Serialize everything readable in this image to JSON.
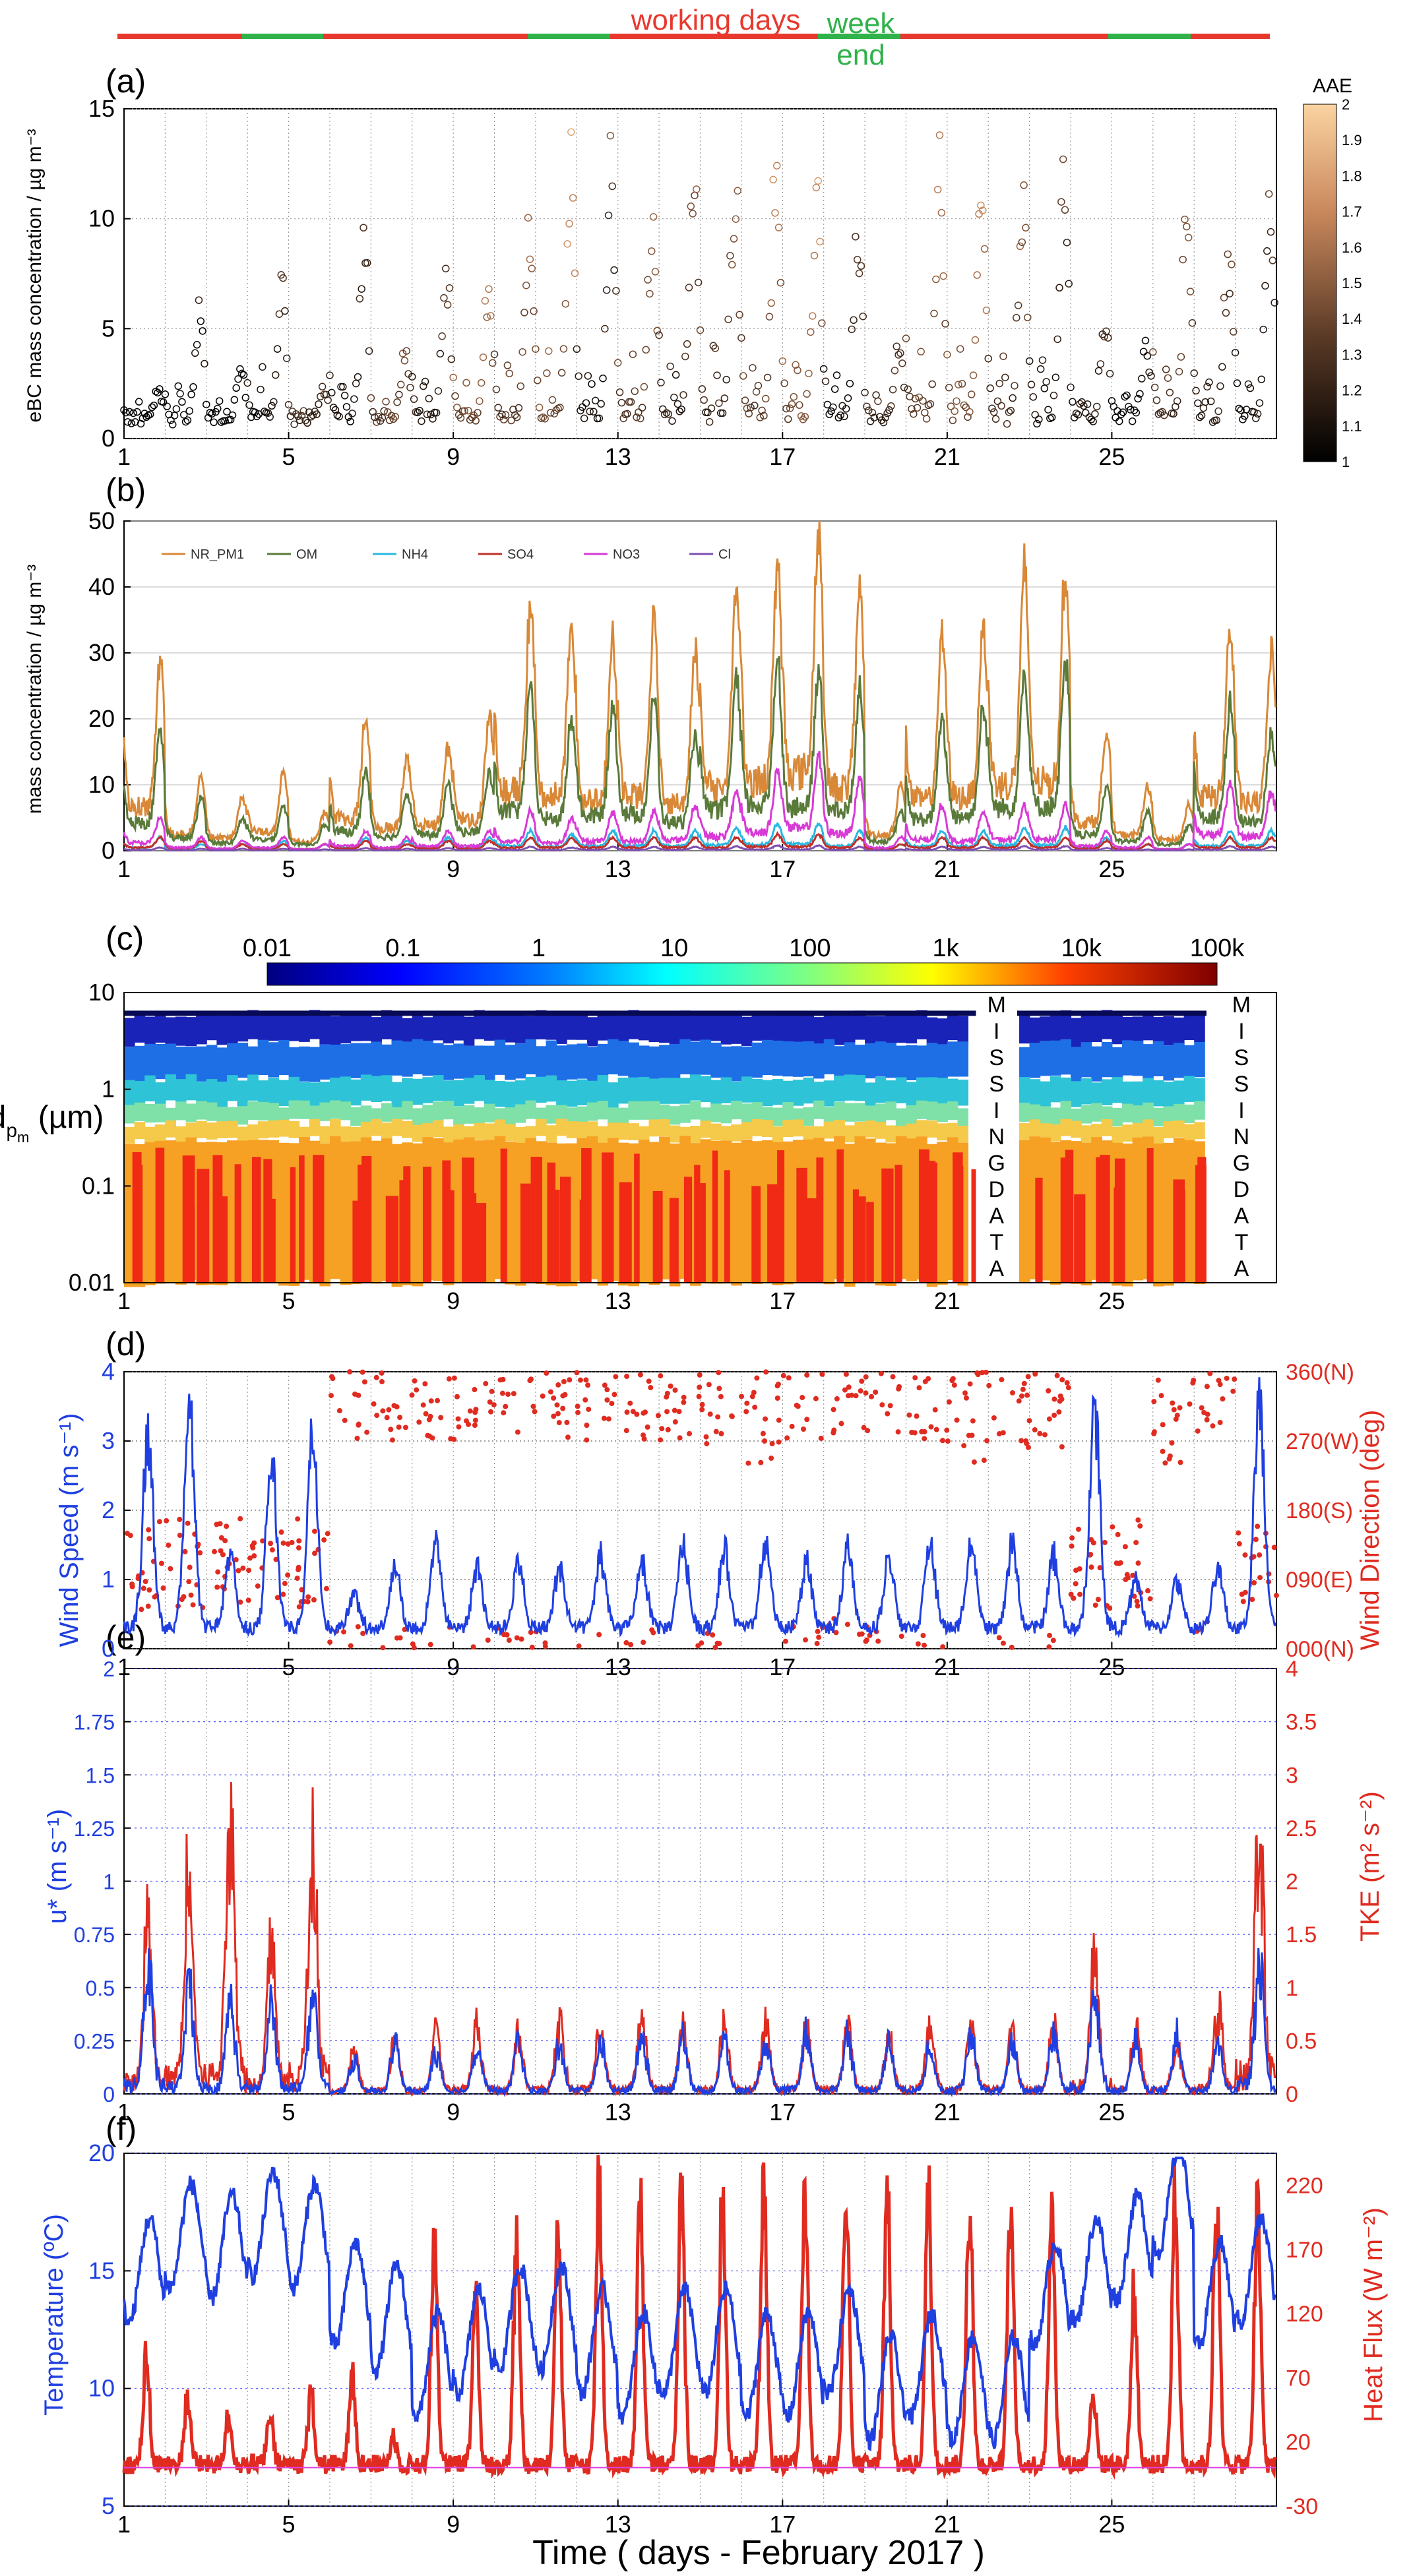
{
  "figure": {
    "xlabel": "Time ( days -  February 2017 )",
    "x_ticks": [
      "1",
      "5",
      "9",
      "13",
      "17",
      "21",
      "25"
    ],
    "banner": {
      "working_label": "working days",
      "weekend_label_1": "week",
      "weekend_label_2": "end",
      "working_color": "#e8382e",
      "weekend_color": "#2fb24a"
    }
  },
  "chart_data": [
    {
      "panel": "(a)",
      "type": "scatter",
      "ylabel": "eBC mass concentration / µg m⁻³",
      "ylim": [
        0,
        15
      ],
      "yticks": [
        "0",
        "5",
        "10",
        "15"
      ],
      "xlim": [
        1,
        29
      ],
      "grid": true,
      "colorbar": {
        "title": "AAE",
        "range": [
          1,
          2
        ],
        "ticks": [
          "1",
          "1.1",
          "1.2",
          "1.3",
          "1.4",
          "1.5",
          "1.6",
          "1.7",
          "1.8",
          "1.9",
          "2"
        ]
      },
      "daily_peak_ebc": [
        2.5,
        6.5,
        3.5,
        8.5,
        2.5,
        10.0,
        4.5,
        9.5,
        7.5,
        10.5,
        14.5,
        14.0,
        11.5,
        14.5,
        14.5,
        14.0,
        13.0,
        12.0,
        5.0,
        14.0,
        13.0,
        14.0,
        14.5,
        6.5,
        5.0,
        13.0,
        10.0,
        12.0
      ],
      "daily_peak_aae": [
        1.1,
        1.2,
        1.15,
        1.3,
        1.5,
        1.3,
        1.6,
        1.4,
        1.7,
        1.55,
        1.7,
        1.3,
        1.6,
        1.4,
        1.45,
        1.6,
        1.7,
        1.3,
        1.5,
        1.6,
        1.7,
        1.5,
        1.3,
        1.4,
        1.2,
        1.5,
        1.4,
        1.3
      ]
    },
    {
      "panel": "(b)",
      "type": "line",
      "ylabel": "mass concentration / µg m⁻³",
      "ylim": [
        0,
        50
      ],
      "yticks": [
        "0",
        "10",
        "20",
        "30",
        "40",
        "50"
      ],
      "xlim": [
        1,
        29
      ],
      "legend_position": "top-left",
      "series": [
        {
          "name": "NR_PM1",
          "color": "#d98837",
          "daily_peak": [
            28,
            11,
            8,
            12,
            6,
            20,
            14,
            16,
            20,
            38,
            35,
            32,
            35,
            30,
            40,
            44,
            50,
            40,
            10,
            32,
            34,
            42,
            43,
            18,
            10,
            7,
            34,
            30
          ]
        },
        {
          "name": "OM",
          "color": "#5a7a3a",
          "daily_peak": [
            18,
            8,
            5,
            7,
            4,
            12,
            9,
            10,
            12,
            25,
            20,
            22,
            23,
            18,
            26,
            29,
            27,
            25,
            6,
            20,
            22,
            27,
            28,
            10,
            6,
            4,
            22,
            18
          ]
        },
        {
          "name": "NH4",
          "color": "#29b7e0",
          "daily_peak": [
            2,
            1,
            1,
            1.5,
            1,
            2,
            1.5,
            2,
            2,
            3,
            2.5,
            3,
            3,
            3,
            3.5,
            4,
            4,
            3,
            1,
            3,
            3,
            3.5,
            3.5,
            2,
            1,
            1,
            3,
            3
          ]
        },
        {
          "name": "SO4",
          "color": "#c0302a",
          "daily_peak": [
            2,
            1.5,
            1,
            1,
            1,
            1.5,
            1,
            1.5,
            1.5,
            2,
            2,
            2,
            2,
            2,
            2,
            2.5,
            2.5,
            2,
            1,
            2,
            2,
            2,
            2,
            1.5,
            1,
            1,
            2,
            2
          ]
        },
        {
          "name": "NO3",
          "color": "#d83ad6",
          "daily_peak": [
            5,
            2,
            1.5,
            2,
            1,
            3,
            2,
            3,
            3,
            6,
            5,
            6,
            6,
            7,
            9,
            12,
            14,
            11,
            2,
            7,
            6,
            7,
            7,
            3,
            2,
            1,
            10,
            9
          ]
        },
        {
          "name": "Cl",
          "color": "#7d4fb0",
          "daily_peak": [
            0.5,
            0.3,
            0.3,
            0.3,
            0.2,
            0.4,
            0.3,
            0.4,
            0.4,
            0.6,
            0.5,
            0.6,
            0.6,
            0.6,
            0.7,
            0.8,
            0.8,
            0.6,
            0.2,
            0.6,
            0.6,
            0.7,
            0.7,
            0.4,
            0.2,
            0.2,
            0.7,
            0.6
          ]
        }
      ]
    },
    {
      "panel": "(c)",
      "type": "heatmap",
      "ylabel": "dpm (µm)",
      "ylim": [
        0.01,
        10
      ],
      "yscale": "log",
      "yticks": [
        "0.01",
        "0.1",
        "1",
        "10"
      ],
      "colorbar": {
        "ticks": [
          "0.01",
          "0.1",
          "1",
          "10",
          "100",
          "1k",
          "10k",
          "100k"
        ],
        "position": "top"
      },
      "missing_data": [
        [
          21.7,
          22.7
        ],
        [
          27.3,
          29
        ]
      ],
      "missing_label": [
        "M",
        "I",
        "S",
        "S",
        "I",
        "N",
        "G",
        "DATA"
      ],
      "missing_label_letters_1": [
        "M",
        "I",
        "S",
        "S",
        "I",
        "N",
        "G",
        "D",
        "A",
        "T",
        "A"
      ]
    },
    {
      "panel": "(d)",
      "type": "line+scatter",
      "ylabel_left": "Wind Speed (m s⁻¹)",
      "ylabel_right": "Wind Direction (deg)",
      "ylim_left": [
        0,
        4
      ],
      "yticks_left": [
        "0",
        "1",
        "2",
        "3",
        "4"
      ],
      "ylim_right": [
        0,
        360
      ],
      "yticks_right": [
        "000(N)",
        "090(E)",
        "180(S)",
        "270(W)",
        "360(N)"
      ],
      "series": [
        {
          "name": "Wind Speed",
          "color": "#1f3fe0",
          "axis": "left",
          "daily_peak": [
            3.5,
            4.0,
            1.5,
            3.0,
            3.5,
            0.8,
            1.3,
            1.6,
            1.2,
            1.3,
            1.2,
            1.4,
            1.3,
            1.6,
            1.5,
            1.6,
            1.3,
            1.6,
            1.4,
            1.6,
            1.6,
            1.6,
            1.4,
            4.0,
            1.0,
            1.0,
            1.2,
            4.0
          ]
        },
        {
          "name": "Wind Direction",
          "color": "#e02b20",
          "axis": "right",
          "daily_mode": [
            110,
            110,
            110,
            110,
            110,
            330,
            330,
            330,
            330,
            340,
            330,
            320,
            330,
            330,
            320,
            300,
            330,
            340,
            340,
            320,
            300,
            320,
            320,
            110,
            110,
            300,
            340,
            110
          ]
        }
      ]
    },
    {
      "panel": "(e)",
      "type": "line",
      "ylabel_left": "u* (m s⁻¹)",
      "ylabel_right": "TKE (m² s⁻²)",
      "ylim_left": [
        0,
        2
      ],
      "yticks_left": [
        "0",
        "0.25",
        "0.5",
        "0.75",
        "1",
        "1.25",
        "1.5",
        "1.75",
        "2"
      ],
      "ylim_right": [
        0,
        4
      ],
      "yticks_right": [
        "0",
        "0.5",
        "1",
        "1.5",
        "2",
        "2.5",
        "3",
        "3.5",
        "4"
      ],
      "series": [
        {
          "name": "u*",
          "color": "#1f3fe0",
          "axis": "left",
          "daily_peak": [
            0.75,
            0.6,
            0.55,
            0.5,
            0.6,
            0.2,
            0.3,
            0.25,
            0.3,
            0.3,
            0.3,
            0.3,
            0.35,
            0.35,
            0.3,
            0.3,
            0.35,
            0.35,
            0.3,
            0.3,
            0.35,
            0.3,
            0.35,
            0.6,
            0.3,
            0.35,
            0.3,
            0.8
          ]
        },
        {
          "name": "TKE",
          "color": "#e02b20",
          "axis": "right",
          "daily_peak": [
            2.0,
            2.8,
            3.4,
            1.8,
            3.0,
            0.5,
            0.6,
            0.7,
            0.8,
            0.7,
            0.8,
            0.8,
            0.9,
            0.8,
            0.8,
            0.8,
            0.8,
            0.8,
            0.7,
            0.8,
            0.8,
            0.7,
            0.8,
            1.5,
            0.8,
            0.6,
            1.0,
            3.3
          ]
        }
      ]
    },
    {
      "panel": "(f)",
      "type": "line",
      "ylabel_left": "Temperature (ºC)",
      "ylabel_right": "Heat Flux (W m⁻²)",
      "ylim_left": [
        5,
        20
      ],
      "yticks_left": [
        "5",
        "10",
        "15",
        "20"
      ],
      "ylim_right": [
        -30,
        245
      ],
      "yticks_right": [
        "-30",
        "20",
        "70",
        "120",
        "170",
        "220"
      ],
      "series": [
        {
          "name": "Temperature",
          "color": "#1f3fe0",
          "axis": "left",
          "daily_mean": [
            15,
            16.5,
            16,
            17,
            16.5,
            14,
            13,
            11,
            12,
            13,
            13,
            12,
            11,
            12,
            12,
            11,
            11,
            12,
            10,
            11,
            10,
            10,
            14,
            15,
            16,
            18,
            14,
            15
          ]
        },
        {
          "name": "Heat Flux",
          "color": "#e02b20",
          "axis": "right",
          "daily_peak": [
            90,
            60,
            40,
            40,
            60,
            80,
            20,
            210,
            150,
            200,
            220,
            245,
            240,
            240,
            240,
            245,
            245,
            240,
            240,
            245,
            240,
            235,
            230,
            60,
            150,
            245,
            245,
            230
          ]
        }
      ]
    }
  ]
}
